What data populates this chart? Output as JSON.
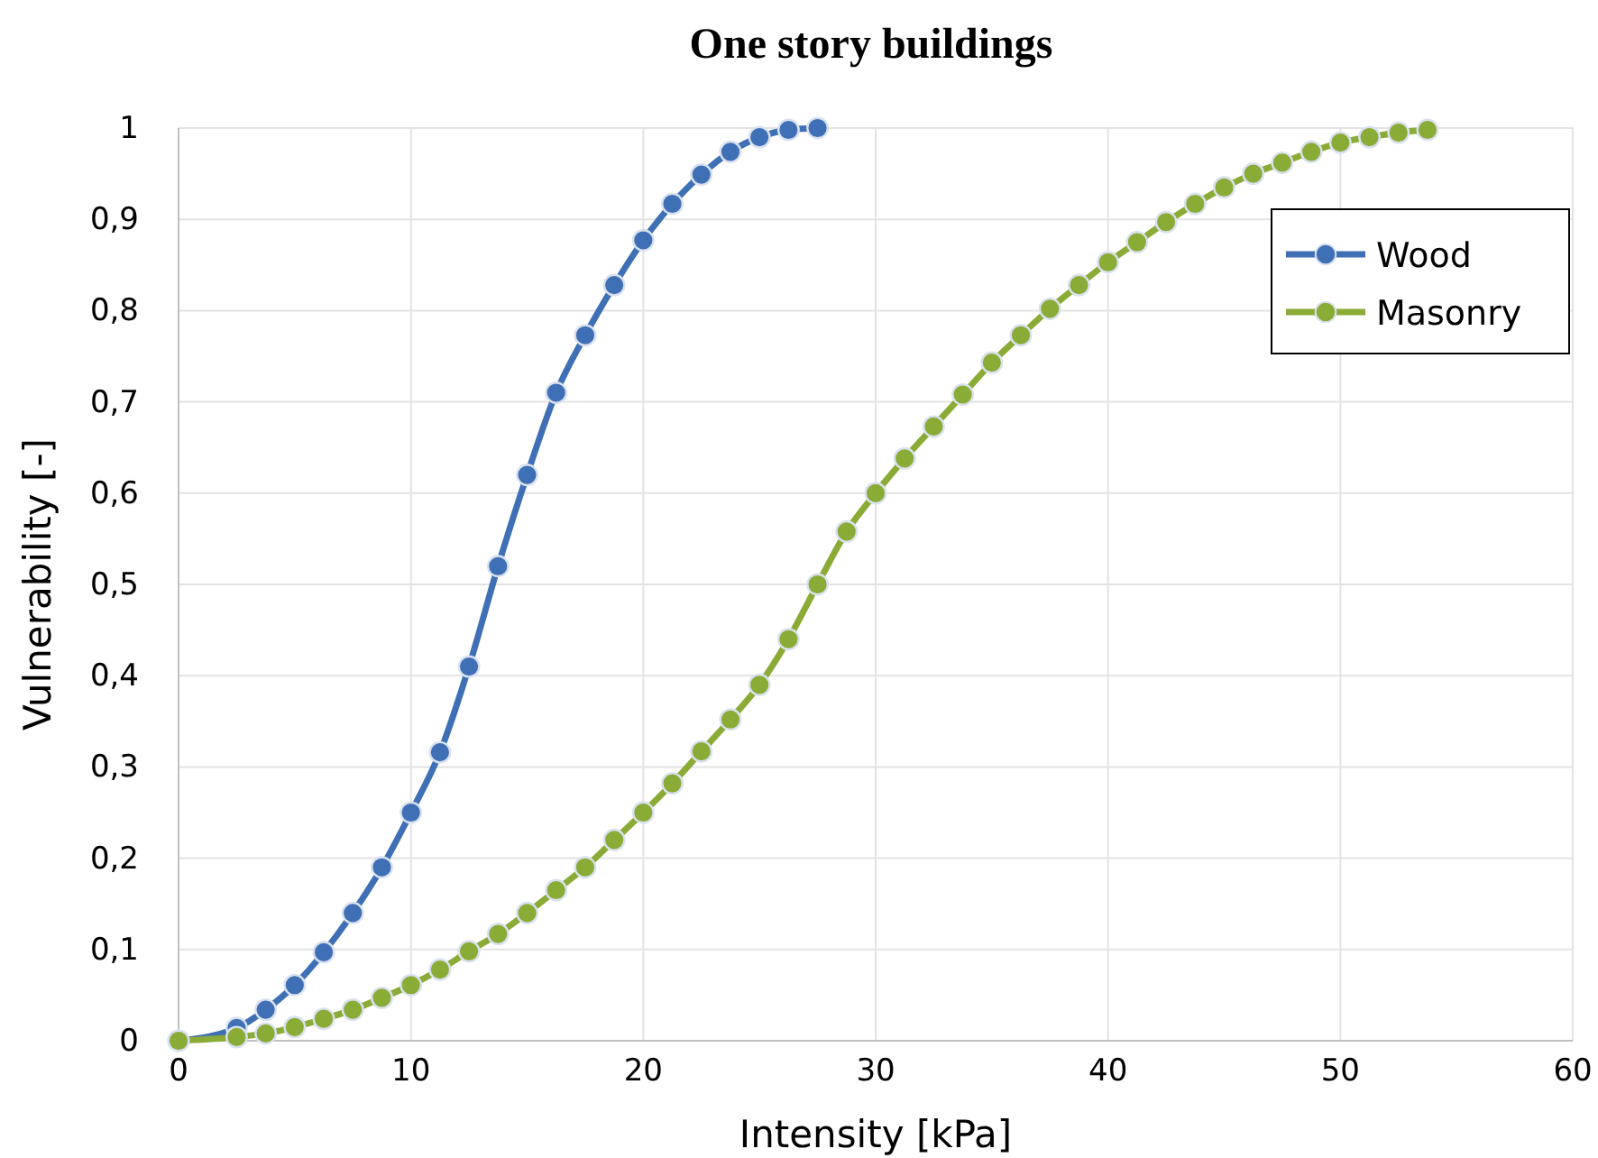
{
  "chart_data": {
    "type": "line",
    "title": "One story buildings",
    "xlabel": "Intensity [kPa]",
    "ylabel": "Vulnerability [-]",
    "xlim": [
      0,
      60
    ],
    "xticks": [
      0,
      10,
      20,
      30,
      40,
      50,
      60
    ],
    "ylim": [
      0,
      1
    ],
    "yticks": [
      0,
      {
        "value": 0.1,
        "label": "0,1"
      },
      {
        "value": 0.2,
        "label": "0,2"
      },
      {
        "value": 0.3,
        "label": "0,3"
      },
      {
        "value": 0.4,
        "label": "0,4"
      },
      {
        "value": 0.5,
        "label": "0,5"
      },
      {
        "value": 0.6,
        "label": "0,6"
      },
      {
        "value": 0.7,
        "label": "0,7"
      },
      {
        "value": 0.8,
        "label": "0,8"
      },
      {
        "value": 0.9,
        "label": "0,9"
      },
      1
    ],
    "grid": true,
    "legend": "top right",
    "marker": "circle",
    "line_style": "solid",
    "series": [
      {
        "name": "Wood",
        "color": "#3f6fb5",
        "x": [
          0,
          2.5,
          3.75,
          5,
          6.25,
          7.5,
          8.75,
          10,
          11.25,
          12.5,
          13.75,
          15,
          16.25,
          17.5,
          18.75,
          20,
          21.25,
          22.5,
          23.75,
          25,
          26.25,
          27.5
        ],
        "values": [
          0,
          0.014,
          0.034,
          0.061,
          0.097,
          0.14,
          0.19,
          0.25,
          0.316,
          0.41,
          0.52,
          0.62,
          0.71,
          0.773,
          0.828,
          0.877,
          0.917,
          0.949,
          0.974,
          0.99,
          0.998,
          1
        ]
      },
      {
        "name": "Masonry",
        "color": "#8aab35",
        "x": [
          0,
          2.5,
          3.75,
          5,
          6.25,
          7.5,
          8.75,
          10,
          11.25,
          12.5,
          13.75,
          15,
          16.25,
          17.5,
          18.75,
          20,
          21.25,
          22.5,
          23.75,
          25,
          26.25,
          27.5,
          28.75,
          30,
          31.25,
          32.5,
          33.75,
          35,
          36.25,
          37.5,
          38.75,
          40,
          41.25,
          42.5,
          43.75,
          45,
          46.25,
          47.5,
          48.75,
          50,
          51.25,
          52.5,
          53.75
        ],
        "values": [
          0,
          0.004,
          0.008,
          0.015,
          0.024,
          0.034,
          0.047,
          0.061,
          0.078,
          0.098,
          0.117,
          0.14,
          0.165,
          0.19,
          0.22,
          0.25,
          0.282,
          0.317,
          0.352,
          0.39,
          0.44,
          0.5,
          0.558,
          0.6,
          0.638,
          0.673,
          0.708,
          0.743,
          0.773,
          0.802,
          0.828,
          0.853,
          0.875,
          0.897,
          0.917,
          0.935,
          0.95,
          0.962,
          0.974,
          0.984,
          0.99,
          0.995,
          0.998
        ]
      }
    ]
  }
}
